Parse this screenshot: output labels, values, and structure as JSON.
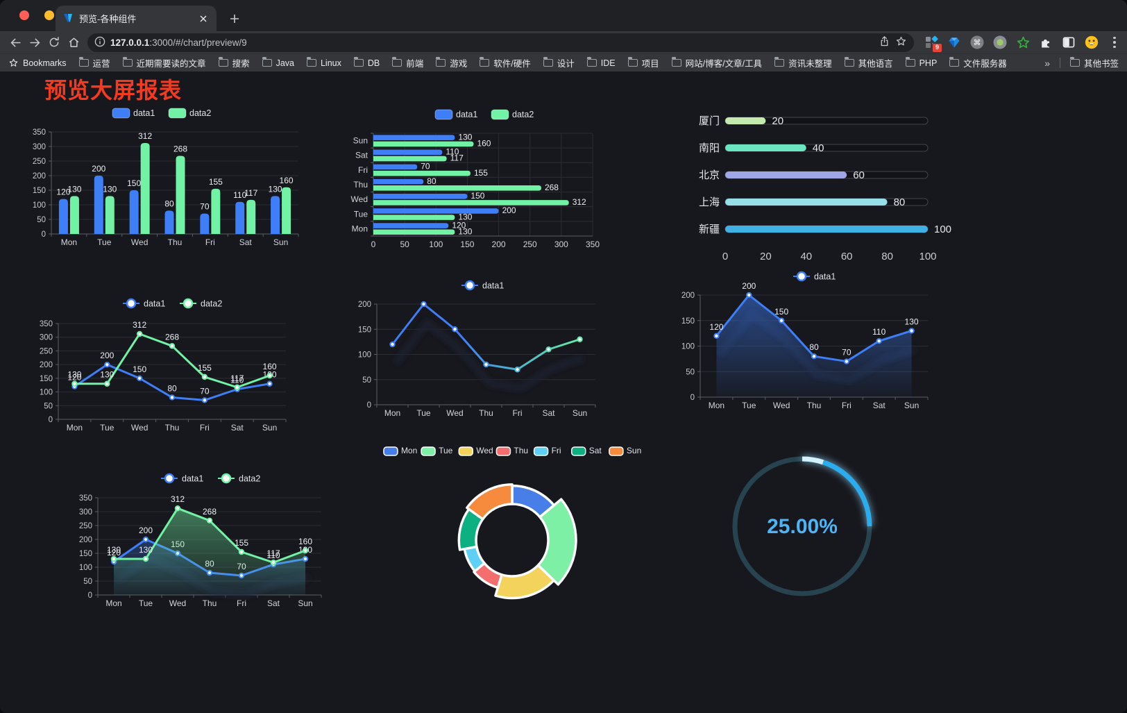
{
  "browser": {
    "tab": {
      "title": "预览-各种组件"
    },
    "url": {
      "host": "127.0.0.1",
      "path": ":3000/#/chart/preview/9"
    },
    "extensions_badge": "9",
    "bookmarks": {
      "root_label": "Bookmarks",
      "items": [
        "运营",
        "近期需要读的文章",
        "搜索",
        "Java",
        "Linux",
        "DB",
        "前端",
        "游戏",
        "软件/硬件",
        "设计",
        "IDE",
        "项目",
        "网站/博客/文章/工具",
        "资讯未整理",
        "其他语言",
        "PHP",
        "文件服务器"
      ],
      "overflow": "»",
      "other_label": "其他书签"
    }
  },
  "page": {
    "title": "预览大屏报表"
  },
  "chart_data": [
    {
      "id": "bar-vertical",
      "type": "bar",
      "categories": [
        "Mon",
        "Tue",
        "Wed",
        "Thu",
        "Fri",
        "Sat",
        "Sun"
      ],
      "series": [
        {
          "name": "data1",
          "color": "#3e7ef7",
          "values": [
            120,
            200,
            150,
            80,
            70,
            110,
            130
          ]
        },
        {
          "name": "data2",
          "color": "#71f2a4",
          "values": [
            130,
            130,
            312,
            268,
            155,
            117,
            160
          ]
        }
      ],
      "ylim": [
        0,
        350
      ],
      "ytick": 50,
      "legend": "chips",
      "show_labels": true
    },
    {
      "id": "bar-horizontal",
      "type": "hbar",
      "categories": [
        "Mon",
        "Tue",
        "Wed",
        "Thu",
        "Fri",
        "Sat",
        "Sun"
      ],
      "series": [
        {
          "name": "data1",
          "color": "#3e7ef7",
          "values": [
            120,
            200,
            150,
            80,
            70,
            110,
            130
          ]
        },
        {
          "name": "data2",
          "color": "#71f2a4",
          "values": [
            130,
            130,
            312,
            268,
            155,
            117,
            160
          ]
        }
      ],
      "xlim": [
        0,
        350
      ],
      "xtick": 50,
      "legend": "chips",
      "show_labels": true
    },
    {
      "id": "progress-bars",
      "type": "progress",
      "max": 100,
      "ticks": [
        0,
        20,
        40,
        60,
        80,
        100
      ],
      "items": [
        {
          "label": "厦门",
          "value": 20,
          "color": "#c4ebad"
        },
        {
          "label": "南阳",
          "value": 40,
          "color": "#6be6c1"
        },
        {
          "label": "北京",
          "value": 60,
          "color": "#a0a7e6"
        },
        {
          "label": "上海",
          "value": 80,
          "color": "#96dee8"
        },
        {
          "label": "新疆",
          "value": 100,
          "color": "#3fb1e3"
        }
      ]
    },
    {
      "id": "line-two-series",
      "type": "line",
      "categories": [
        "Mon",
        "Tue",
        "Wed",
        "Thu",
        "Fri",
        "Sat",
        "Sun"
      ],
      "series": [
        {
          "name": "data1",
          "color": "#3e7ef7",
          "values": [
            120,
            200,
            150,
            80,
            70,
            110,
            130
          ]
        },
        {
          "name": "data2",
          "color": "#71f2a4",
          "values": [
            130,
            130,
            312,
            268,
            155,
            117,
            160
          ]
        }
      ],
      "ylim": [
        0,
        350
      ],
      "ytick": 50,
      "legend": "markers",
      "show_labels": true
    },
    {
      "id": "line-gradient",
      "type": "line",
      "categories": [
        "Mon",
        "Tue",
        "Wed",
        "Thu",
        "Fri",
        "Sat",
        "Sun"
      ],
      "series": [
        {
          "name": "data1",
          "gradient": [
            "#3e7ef7",
            "#5fe9a5"
          ],
          "values": [
            120,
            200,
            150,
            80,
            70,
            110,
            130
          ]
        }
      ],
      "ylim": [
        0,
        200
      ],
      "ytick": 50,
      "legend": "markers",
      "show_labels": false,
      "shadow": true
    },
    {
      "id": "line-area",
      "type": "line",
      "categories": [
        "Mon",
        "Tue",
        "Wed",
        "Thu",
        "Fri",
        "Sat",
        "Sun"
      ],
      "series": [
        {
          "name": "data1",
          "color": "#3e7ef7",
          "area": true,
          "values": [
            120,
            200,
            150,
            80,
            70,
            110,
            130
          ]
        }
      ],
      "ylim": [
        0,
        200
      ],
      "ytick": 50,
      "legend": "markers",
      "show_labels": true,
      "shadow": true
    },
    {
      "id": "area-two-series",
      "type": "line",
      "categories": [
        "Mon",
        "Tue",
        "Wed",
        "Thu",
        "Fri",
        "Sat",
        "Sun"
      ],
      "series": [
        {
          "name": "data1",
          "color": "#3e7ef7",
          "area": true,
          "values": [
            120,
            200,
            150,
            80,
            70,
            110,
            130
          ]
        },
        {
          "name": "data2",
          "color": "#71f2a4",
          "area": true,
          "values": [
            130,
            130,
            312,
            268,
            155,
            117,
            160
          ]
        }
      ],
      "ylim": [
        0,
        350
      ],
      "ytick": 50,
      "legend": "markers",
      "show_labels": true,
      "shadow": true
    },
    {
      "id": "rose-pie",
      "type": "pie",
      "inner_radius": 52,
      "items": [
        {
          "label": "Mon",
          "value": 120,
          "color": "#477ee8"
        },
        {
          "label": "Tue",
          "value": 200,
          "color": "#7df0a6"
        },
        {
          "label": "Wed",
          "value": 150,
          "color": "#f3d35b"
        },
        {
          "label": "Thu",
          "value": 80,
          "color": "#f56e6e"
        },
        {
          "label": "Fri",
          "value": 70,
          "color": "#5fd0f5"
        },
        {
          "label": "Sat",
          "value": 110,
          "color": "#0db181"
        },
        {
          "label": "Sun",
          "value": 130,
          "color": "#f68a3d"
        }
      ],
      "legend": "chips"
    },
    {
      "id": "gauge",
      "type": "gauge",
      "value": 25,
      "text": "25.00%",
      "color": "#2aadf0",
      "track_color": "#27434f",
      "text_color": "#4db5f6"
    }
  ]
}
